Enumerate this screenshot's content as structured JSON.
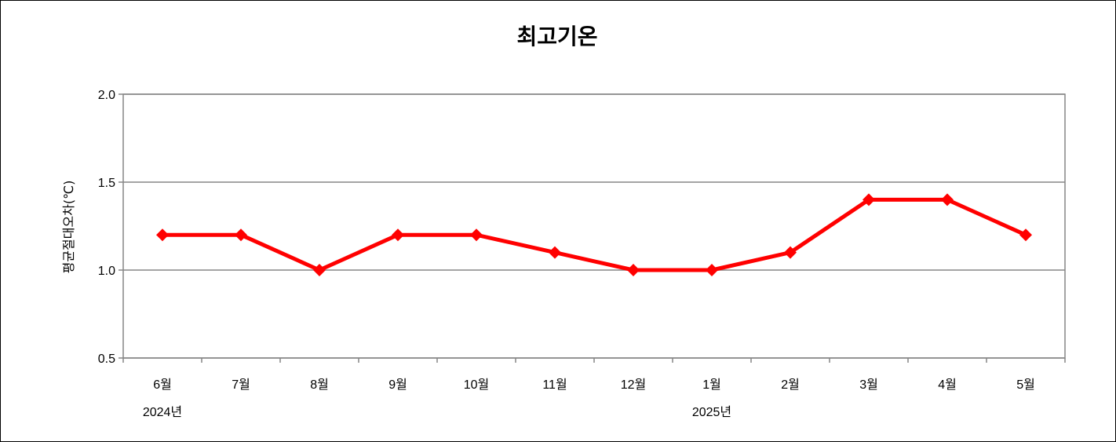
{
  "chart_data": {
    "type": "line",
    "title": "최고기온",
    "ylabel": "평균절대오차(℃)",
    "xlabel": "",
    "categories": [
      "6월",
      "7월",
      "8월",
      "9월",
      "10월",
      "11월",
      "12월",
      "1월",
      "2월",
      "3월",
      "4월",
      "5월"
    ],
    "year_labels": [
      {
        "text": "2024년",
        "category_index": 0
      },
      {
        "text": "2025년",
        "category_index": 7
      }
    ],
    "series": [
      {
        "values": [
          1.2,
          1.2,
          1.0,
          1.2,
          1.2,
          1.1,
          1.0,
          1.0,
          1.1,
          1.4,
          1.4,
          1.2
        ],
        "color": "#ff0000",
        "marker": "diamond"
      }
    ],
    "ylim": [
      0.5,
      2.0
    ],
    "yticks": [
      "0.5",
      "1.0",
      "1.5",
      "2.0"
    ],
    "grid": true,
    "legend": "none"
  }
}
